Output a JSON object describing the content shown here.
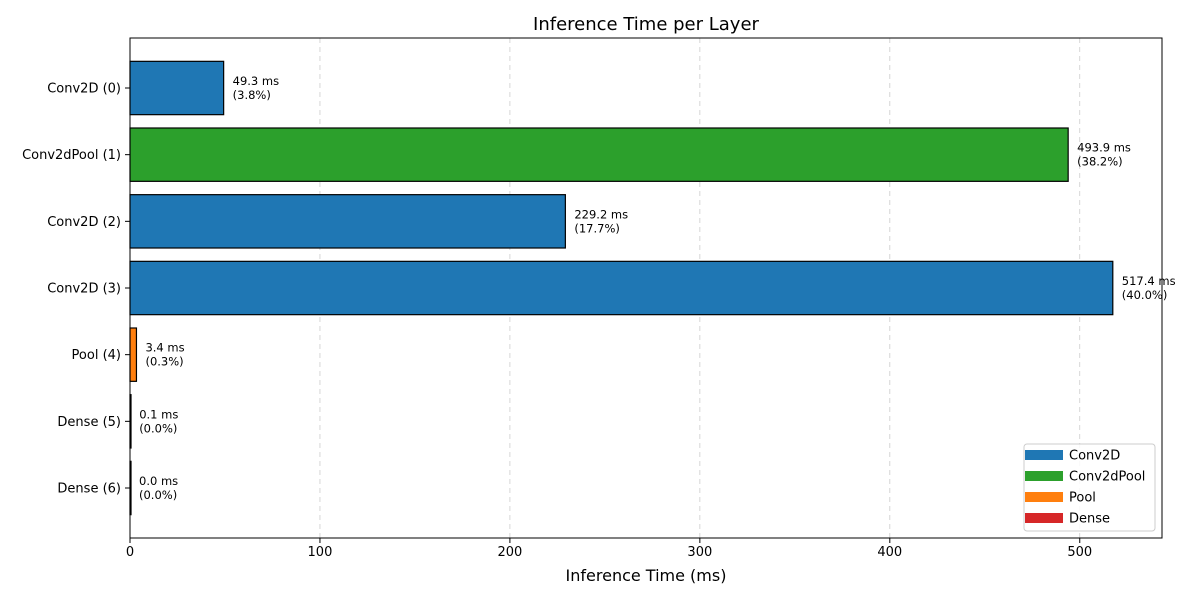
{
  "chart_data": {
    "type": "bar",
    "orientation": "horizontal",
    "title": "Inference Time per Layer",
    "xlabel": "Inference Time (ms)",
    "ylabel": "",
    "xlim": [
      0,
      543.3
    ],
    "xticks": [
      0,
      100,
      200,
      300,
      400,
      500
    ],
    "grid": "x-dashed",
    "legend_position": "bottom-right",
    "categories": [
      "Conv2D (0)",
      "Conv2dPool (1)",
      "Conv2D (2)",
      "Conv2D (3)",
      "Pool (4)",
      "Dense (5)",
      "Dense (6)"
    ],
    "layer_types": [
      "Conv2D",
      "Conv2dPool",
      "Conv2D",
      "Conv2D",
      "Pool",
      "Dense",
      "Dense"
    ],
    "values": [
      49.3,
      493.9,
      229.2,
      517.4,
      3.4,
      0.1,
      0.0
    ],
    "value_labels": [
      "49.3 ms",
      "493.9 ms",
      "229.2 ms",
      "517.4 ms",
      "3.4 ms",
      "0.1 ms",
      "0.0 ms"
    ],
    "percent_labels": [
      "(3.8%)",
      "(38.2%)",
      "(17.7%)",
      "(40.0%)",
      "(0.3%)",
      "(0.0%)",
      "(0.0%)"
    ],
    "legend": [
      {
        "label": "Conv2D",
        "color": "#1f77b4"
      },
      {
        "label": "Conv2dPool",
        "color": "#2ca02c"
      },
      {
        "label": "Pool",
        "color": "#ff7f0e"
      },
      {
        "label": "Dense",
        "color": "#d62728"
      }
    ]
  }
}
